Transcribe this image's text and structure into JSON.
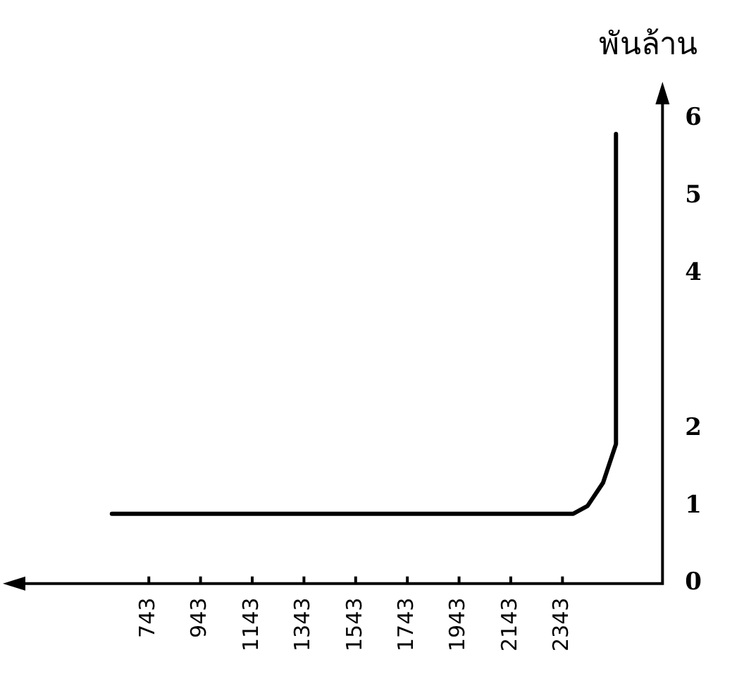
{
  "chart_data": {
    "type": "line",
    "ylabel": "พันล้าน",
    "x": [
      600,
      2385,
      2440,
      2500,
      2550,
      2550
    ],
    "series": [
      {
        "color": "#000000",
        "values": [
          0.9,
          0.9,
          1.0,
          1.3,
          1.8,
          5.8
        ]
      }
    ],
    "xlim": [
      200,
      2730
    ],
    "xticks": [
      743,
      943,
      1143,
      1343,
      1543,
      1743,
      1943,
      2143,
      2343
    ],
    "ylim": [
      0,
      6.4
    ],
    "yticks": [
      0,
      1,
      2,
      4,
      5,
      6
    ],
    "grid": false,
    "legend": false,
    "marker": "none",
    "line_style": "solid"
  }
}
